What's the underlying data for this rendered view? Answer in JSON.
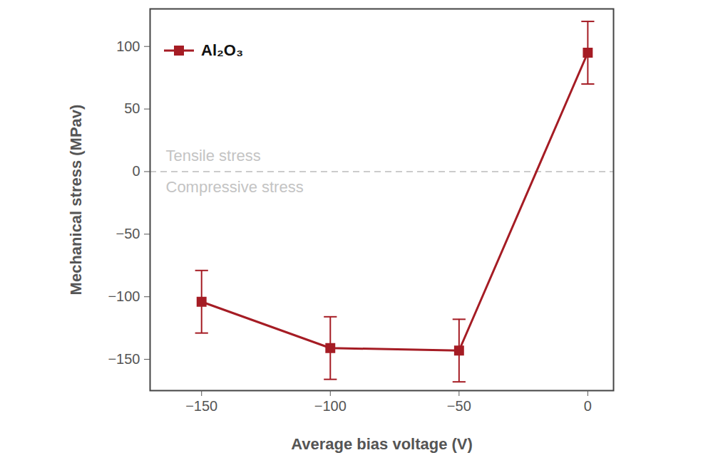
{
  "chart_data": {
    "type": "line",
    "x_label": "Average bias voltage (V)",
    "y_label": "Mechanical stress (MPav)",
    "x": [
      -150,
      -100,
      -50,
      0
    ],
    "series": [
      {
        "name": "Al₂O₃",
        "color": "#a51c24",
        "marker": "square",
        "line_style": "solid",
        "values": [
          -104,
          -141,
          -143,
          95
        ],
        "errors": [
          25,
          25,
          25,
          25
        ]
      }
    ],
    "xlim": [
      -170,
      10
    ],
    "xticks": [
      -150,
      -100,
      -50,
      0
    ],
    "ylim": [
      -175,
      130
    ],
    "yticks": [
      -150,
      -100,
      -50,
      0,
      50,
      100
    ],
    "reference_line": {
      "y": 0,
      "line_style": "dashed"
    },
    "annotations": [
      {
        "text": "Tensile stress",
        "position": "above"
      },
      {
        "text": "Compressive stress",
        "position": "below"
      }
    ],
    "legend": "top-left",
    "grid": false
  }
}
